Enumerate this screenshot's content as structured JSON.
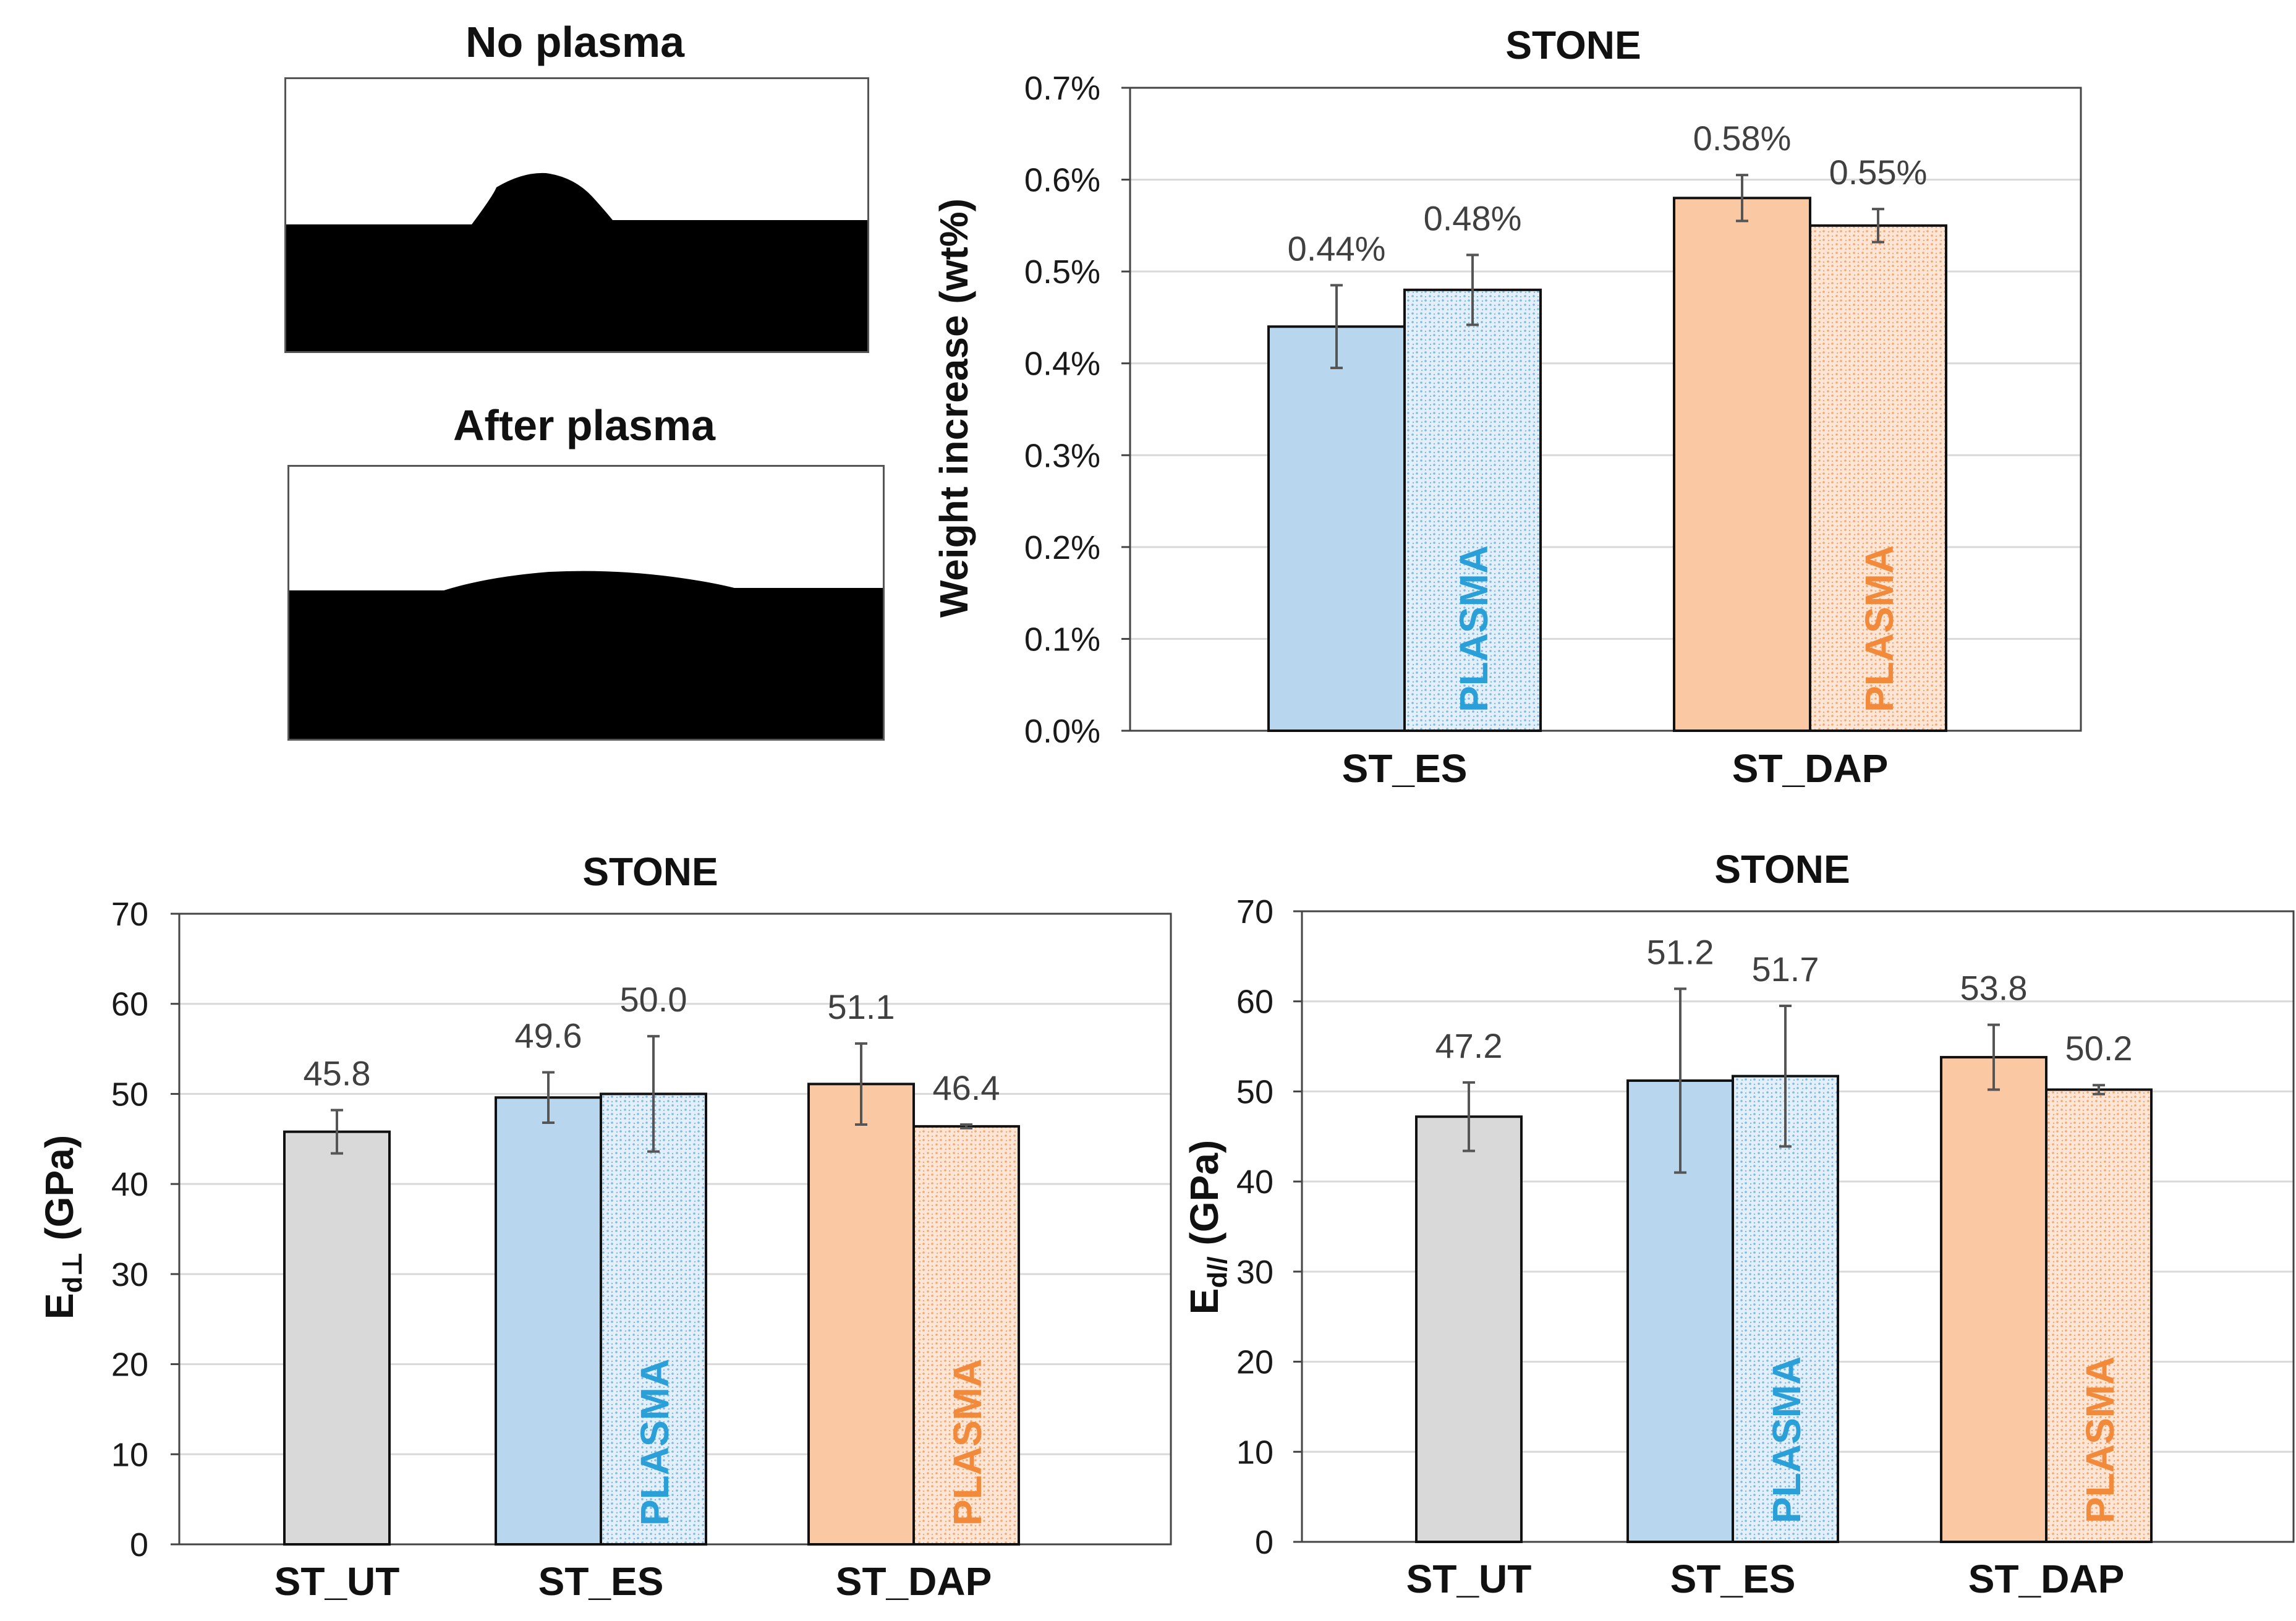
{
  "photos": [
    {
      "title": "No plasma"
    },
    {
      "title": "After plasma"
    }
  ],
  "colors": {
    "ut": "#d9d9d9",
    "es": "#b8d7ee",
    "es_dots": "#7fb8e2",
    "dap": "#fbc8a4",
    "dap_dots": "#f5a670",
    "plasma_es_text": "#2a9fd8",
    "plasma_dap_text": "#f28a3c"
  },
  "plasma_label": "PLASMA",
  "chart_data": [
    {
      "type": "bar",
      "title": "STONE",
      "ylabel": "Weight increase (wt%)",
      "ylim": [
        0,
        0.7
      ],
      "yticks": [
        "0.0%",
        "0.1%",
        "0.2%",
        "0.3%",
        "0.4%",
        "0.5%",
        "0.6%",
        "0.7%"
      ],
      "categories": [
        "ST_ES",
        "ST_DAP"
      ],
      "bars": [
        {
          "category": "ST_ES",
          "value": 0.44,
          "error": 0.045,
          "label": "0.44%",
          "style": "es",
          "plasma": false
        },
        {
          "category": "ST_ES",
          "value": 0.48,
          "error": 0.038,
          "label": "0.48%",
          "style": "es",
          "plasma": true
        },
        {
          "category": "ST_DAP",
          "value": 0.58,
          "error": 0.025,
          "label": "0.58%",
          "style": "dap",
          "plasma": false
        },
        {
          "category": "ST_DAP",
          "value": 0.55,
          "error": 0.018,
          "label": "0.55%",
          "style": "dap",
          "plasma": true
        }
      ]
    },
    {
      "type": "bar",
      "title": "STONE",
      "ylabel": "Ed⊥ (GPa)",
      "ylabel_main": "E",
      "ylabel_sub": "d⊥",
      "ylabel_rest": " (GPa)",
      "ylim": [
        0,
        70
      ],
      "yticks": [
        "0",
        "10",
        "20",
        "30",
        "40",
        "50",
        "60",
        "70"
      ],
      "categories": [
        "ST_UT",
        "ST_ES",
        "ST_DAP"
      ],
      "bars": [
        {
          "category": "ST_UT",
          "value": 45.8,
          "error": 2.4,
          "label": "45.8",
          "style": "ut",
          "plasma": false
        },
        {
          "category": "ST_ES",
          "value": 49.6,
          "error": 2.8,
          "label": "49.6",
          "style": "es",
          "plasma": false
        },
        {
          "category": "ST_ES",
          "value": 50.0,
          "error": 6.4,
          "label": "50.0",
          "style": "es",
          "plasma": true
        },
        {
          "category": "ST_DAP",
          "value": 51.1,
          "error": 4.5,
          "label": "51.1",
          "style": "dap",
          "plasma": false
        },
        {
          "category": "ST_DAP",
          "value": 46.4,
          "error": 0.2,
          "label": "46.4",
          "style": "dap",
          "plasma": true
        }
      ]
    },
    {
      "type": "bar",
      "title": "STONE",
      "ylabel": "Ed// (GPa)",
      "ylabel_main": "E",
      "ylabel_sub": "d//",
      "ylabel_rest": " (GPa)",
      "ylim": [
        0,
        70
      ],
      "yticks": [
        "0",
        "10",
        "20",
        "30",
        "40",
        "50",
        "60",
        "70"
      ],
      "categories": [
        "ST_UT",
        "ST_ES",
        "ST_DAP"
      ],
      "bars": [
        {
          "category": "ST_UT",
          "value": 47.2,
          "error": 3.8,
          "label": "47.2",
          "style": "ut",
          "plasma": false
        },
        {
          "category": "ST_ES",
          "value": 51.2,
          "error": 10.2,
          "label": "51.2",
          "style": "es",
          "plasma": false
        },
        {
          "category": "ST_ES",
          "value": 51.7,
          "error": 7.8,
          "label": "51.7",
          "style": "es",
          "plasma": true
        },
        {
          "category": "ST_DAP",
          "value": 53.8,
          "error": 3.6,
          "label": "53.8",
          "style": "dap",
          "plasma": false
        },
        {
          "category": "ST_DAP",
          "value": 50.2,
          "error": 0.5,
          "label": "50.2",
          "style": "dap",
          "plasma": true
        }
      ]
    }
  ]
}
